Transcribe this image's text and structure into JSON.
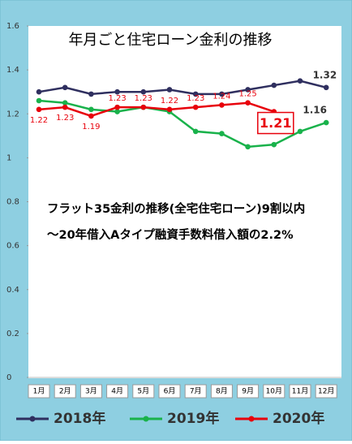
{
  "chart_data": {
    "type": "line",
    "title": "年月ごと住宅ローン金利の推移",
    "annotations": [
      "フラット35金利の推移(全宅住宅ローン)9割以内",
      "～20年借入Aタイプ融資手数料借入額の2.2%"
    ],
    "categories": [
      "1月",
      "2月",
      "3月",
      "4月",
      "5月",
      "6月",
      "7月",
      "8月",
      "9月",
      "10月",
      "11月",
      "12月"
    ],
    "series": [
      {
        "name": "2018年",
        "color": "#2f2f5f",
        "values": [
          1.3,
          1.32,
          1.29,
          1.3,
          1.3,
          1.31,
          1.29,
          1.29,
          1.31,
          1.33,
          1.35,
          1.32
        ],
        "value_labels": [
          null,
          null,
          null,
          null,
          null,
          null,
          null,
          null,
          null,
          null,
          null,
          "1.32"
        ]
      },
      {
        "name": "2019年",
        "color": "#19b24b",
        "values": [
          1.26,
          1.25,
          1.22,
          1.21,
          1.23,
          1.21,
          1.12,
          1.11,
          1.05,
          1.06,
          1.12,
          1.16
        ],
        "value_labels": [
          null,
          null,
          null,
          null,
          null,
          null,
          null,
          null,
          null,
          null,
          null,
          "1.16"
        ]
      },
      {
        "name": "2020年",
        "color": "#e8000b",
        "values": [
          1.22,
          1.23,
          1.19,
          1.23,
          1.23,
          1.22,
          1.23,
          1.24,
          1.25,
          1.21,
          null,
          null
        ],
        "value_labels": [
          "1.22",
          "1.23",
          "1.19",
          "1.23",
          "1.23",
          "1.22",
          "1.23",
          "1.24",
          "1.25",
          "1.21",
          null,
          null
        ]
      }
    ],
    "highlight_point": [
      2,
      9
    ],
    "ylim": [
      0,
      1.6
    ],
    "yticks": [
      0,
      0.2,
      0.4,
      0.6,
      0.8,
      1,
      1.2,
      1.4,
      1.6
    ],
    "grid": false,
    "legend": "bottom"
  }
}
